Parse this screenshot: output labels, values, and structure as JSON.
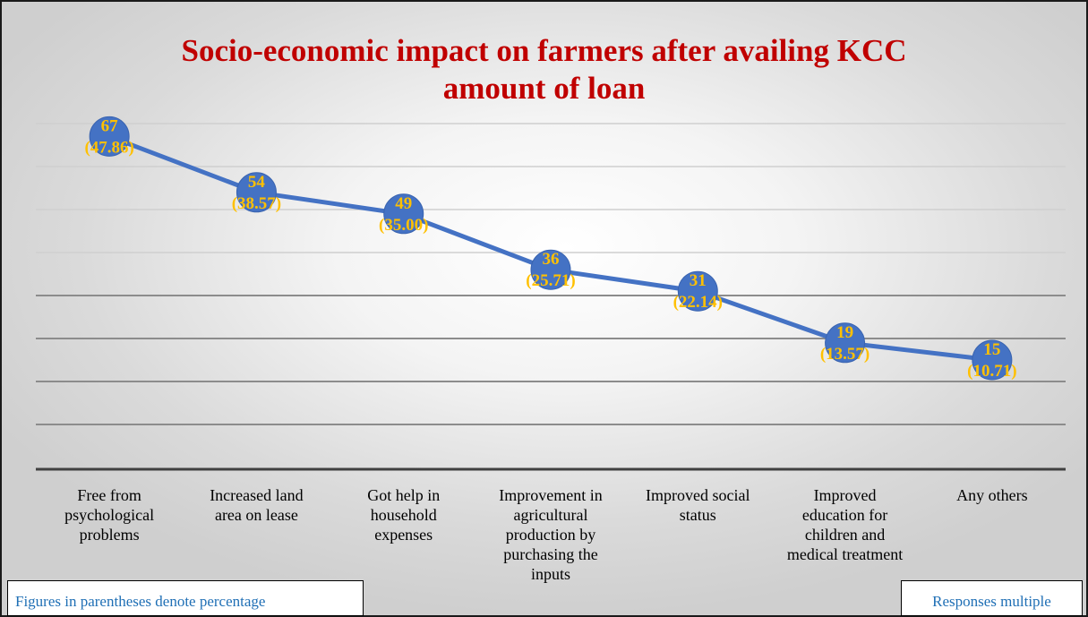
{
  "chart_data": {
    "type": "line",
    "title": "Socio-economic impact on farmers after availing KCC amount of loan",
    "categories": [
      "Free from psychological problems",
      "Increased land area on lease",
      "Got help in household expenses",
      "Improvement in agricultural production by purchasing the inputs",
      "Improved social status",
      "Improved education for children and medical treatment",
      "Any others"
    ],
    "category_lines": [
      [
        "Free from",
        "psychological",
        "problems"
      ],
      [
        "Increased land",
        "area on lease"
      ],
      [
        "Got help in",
        "household",
        "expenses"
      ],
      [
        "Improvement in",
        "agricultural",
        "production by",
        "purchasing the",
        "inputs"
      ],
      [
        "Improved social",
        "status"
      ],
      [
        "Improved",
        "education for",
        "children and",
        "medical treatment"
      ],
      [
        "Any others"
      ]
    ],
    "series": [
      {
        "values": [
          67,
          54,
          49,
          36,
          31,
          19,
          15
        ]
      }
    ],
    "percent_labels": [
      "(47.86)",
      "(38.57)",
      "(35.00)",
      "(25.71)",
      "(22.14)",
      "(13.57)",
      "(10.71)"
    ],
    "ylim": [
      -10,
      90
    ],
    "grid": true,
    "legend": "none",
    "colors": {
      "line": "#4472c4",
      "marker": "#4472c4",
      "data_label": "#ffc000",
      "title": "#c00000",
      "notes": "#1f6fb5",
      "gridline": "#a6a6a6"
    }
  },
  "notes": {
    "left": "Figures in parentheses denote percentage",
    "right": "Responses multiple"
  }
}
